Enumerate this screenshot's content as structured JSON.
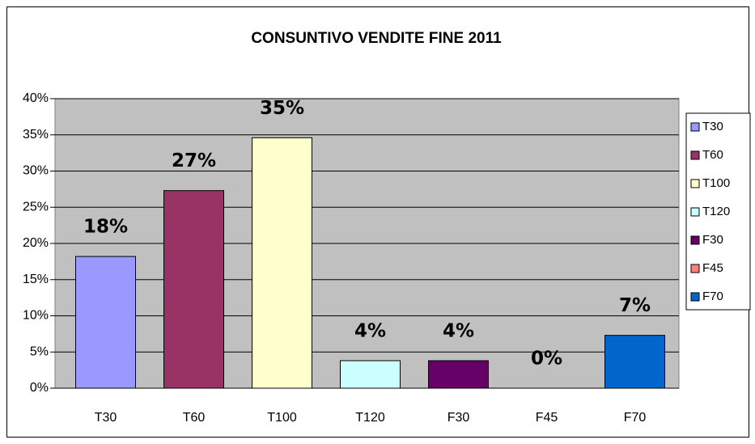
{
  "chart_data": {
    "type": "bar",
    "title": "CONSUNTIVO VENDITE FINE 2011",
    "categories": [
      "T30",
      "T60",
      "T100",
      "T120",
      "F30",
      "F45",
      "F70"
    ],
    "values": [
      18.2,
      27.3,
      34.6,
      3.8,
      3.8,
      0,
      7.3
    ],
    "value_labels": [
      "18%",
      "27%",
      "35%",
      "4%",
      "4%",
      "0%",
      "7%"
    ],
    "colors": [
      "#9999ff",
      "#993366",
      "#ffffcc",
      "#ccffff",
      "#660066",
      "#ff8080",
      "#0066cc"
    ],
    "ylim": [
      0,
      40
    ],
    "yticks": [
      {
        "value": 0,
        "label": "0%"
      },
      {
        "value": 5,
        "label": "5%"
      },
      {
        "value": 10,
        "label": "10%"
      },
      {
        "value": 15,
        "label": "15%"
      },
      {
        "value": 20,
        "label": "20%"
      },
      {
        "value": 25,
        "label": "25%"
      },
      {
        "value": 30,
        "label": "30%"
      },
      {
        "value": 35,
        "label": "35%"
      },
      {
        "value": 40,
        "label": "40%"
      }
    ],
    "grid": true,
    "legend": "right"
  }
}
